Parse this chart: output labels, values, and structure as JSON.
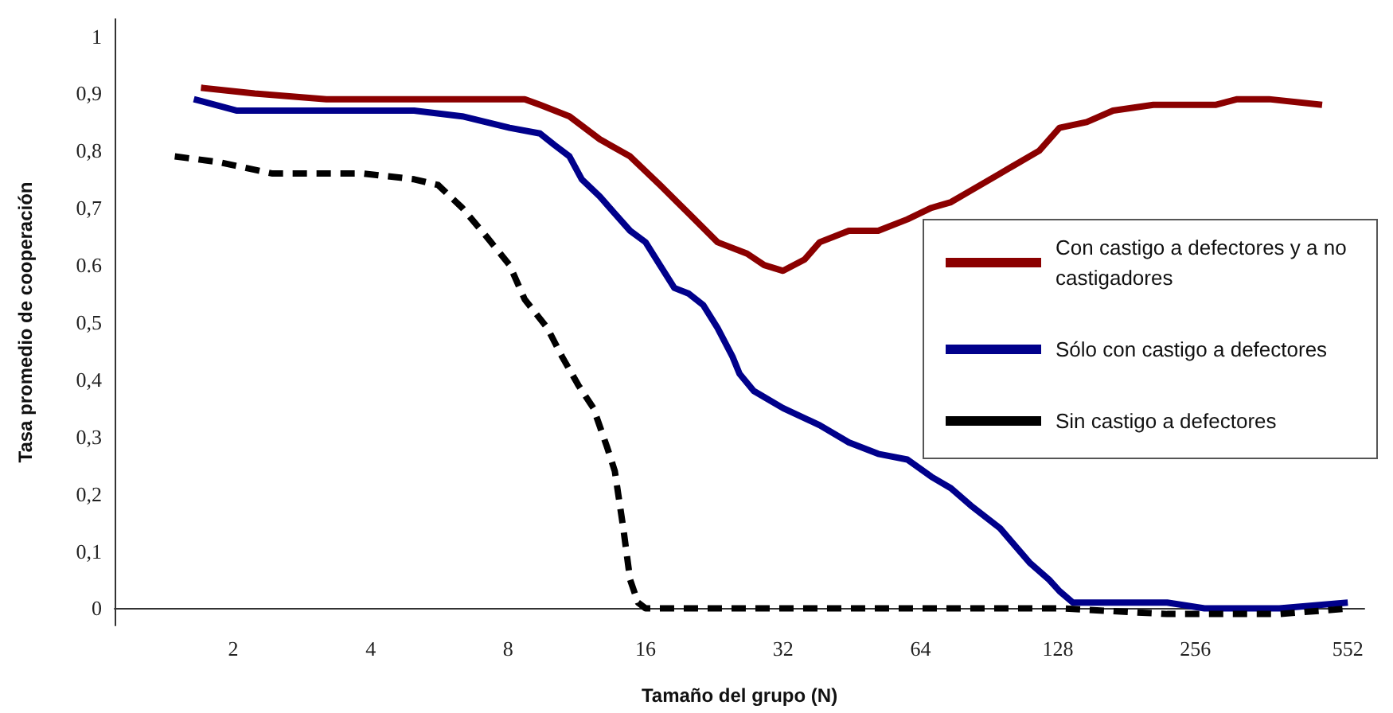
{
  "chart_data": {
    "type": "line",
    "xlabel": "Tamaño del grupo (N)",
    "ylabel": "Tasa promedio de cooperación",
    "log": "x",
    "xlim": [
      1.1,
      600
    ],
    "xticks": [
      2,
      4,
      8,
      16,
      32,
      64,
      128,
      256,
      552
    ],
    "ylim": [
      -0.03,
      1.03
    ],
    "yticks": [
      0,
      {
        "value": 0.1,
        "label": "0,1"
      },
      {
        "value": 0.2,
        "label": "0,2"
      },
      {
        "value": 0.3,
        "label": "0,3"
      },
      {
        "value": 0.4,
        "label": "0,4"
      },
      {
        "value": 0.5,
        "label": "0,5"
      },
      {
        "value": 0.6,
        "label": "0.6"
      },
      {
        "value": 0.7,
        "label": "0,7"
      },
      {
        "value": 0.8,
        "label": "0,8"
      },
      {
        "value": 0.9,
        "label": "0,9"
      },
      1
    ],
    "grid": false,
    "legend": "right",
    "marker": "none",
    "series": [
      {
        "name": "Con castigo a defectores y a no castigadores",
        "color": "#8b0000",
        "line_style": "solid",
        "x": [
          1.7,
          2.23,
          3.2,
          4.98,
          6.35,
          8.06,
          8.7,
          9.4,
          10.9,
          12.7,
          14.8,
          17.2,
          19.9,
          23,
          26.7,
          29.1,
          32,
          35.7,
          38.5,
          44.6,
          51.7,
          59.9,
          67.6,
          74.6,
          82.4,
          95.6,
          116.5,
          129,
          148,
          169,
          207,
          254,
          283,
          316,
          371,
          485
        ],
        "values": [
          0.91,
          0.9,
          0.89,
          0.89,
          0.89,
          0.89,
          0.89,
          0.88,
          0.86,
          0.82,
          0.79,
          0.74,
          0.69,
          0.64,
          0.62,
          0.6,
          0.59,
          0.61,
          0.64,
          0.66,
          0.66,
          0.68,
          0.7,
          0.71,
          0.73,
          0.76,
          0.8,
          0.84,
          0.85,
          0.87,
          0.88,
          0.88,
          0.88,
          0.89,
          0.89,
          0.88
        ]
      },
      {
        "name": "Sólo con castigo a defectores",
        "color": "#00008b",
        "line_style": "solid",
        "x": [
          1.64,
          2.04,
          2.68,
          3.86,
          4.98,
          6.35,
          8.06,
          9.4,
          10.1,
          10.9,
          11.6,
          12.7,
          13.7,
          14.8,
          16,
          17.2,
          18.5,
          19.9,
          21.4,
          23,
          24.8,
          25.7,
          27.6,
          32,
          38.5,
          44.6,
          51.7,
          59.9,
          67.6,
          74.6,
          82.4,
          95.6,
          100.4,
          110.9,
          122.4,
          129,
          138,
          169,
          222,
          268,
          391,
          552
        ],
        "values": [
          0.89,
          0.87,
          0.87,
          0.87,
          0.87,
          0.86,
          0.84,
          0.83,
          0.81,
          0.79,
          0.75,
          0.72,
          0.69,
          0.66,
          0.64,
          0.6,
          0.56,
          0.55,
          0.53,
          0.49,
          0.44,
          0.41,
          0.38,
          0.35,
          0.32,
          0.29,
          0.27,
          0.26,
          0.23,
          0.21,
          0.18,
          0.14,
          0.12,
          0.08,
          0.05,
          0.03,
          0.01,
          0.01,
          0.01,
          0,
          0,
          0.01
        ]
      },
      {
        "name": "Sin castigo a defectores",
        "color": "#000000",
        "line_style": "dashed",
        "x": [
          1.49,
          1.86,
          2.44,
          3.86,
          4.98,
          5.62,
          6.35,
          7.17,
          8.06,
          8.7,
          9.75,
          10.5,
          11.4,
          12.3,
          13.2,
          13.7,
          14.3,
          14.8,
          15.4,
          16,
          21.4,
          35.7,
          71,
          129,
          222,
          391,
          560
        ],
        "values": [
          0.79,
          0.78,
          0.76,
          0.76,
          0.75,
          0.74,
          0.7,
          0.65,
          0.6,
          0.54,
          0.49,
          0.44,
          0.39,
          0.35,
          0.28,
          0.24,
          0.14,
          0.05,
          0.01,
          0,
          0,
          0,
          0,
          0,
          -0.01,
          -0.01,
          0
        ]
      }
    ]
  }
}
